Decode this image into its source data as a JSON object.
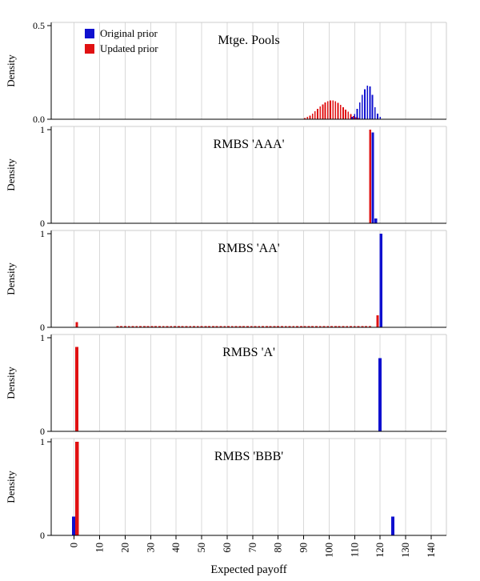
{
  "figure": {
    "xlabel": "Expected payoff",
    "ylabel": "Density",
    "x_ticks": [
      0,
      10,
      20,
      30,
      40,
      50,
      60,
      70,
      80,
      90,
      100,
      110,
      120,
      130,
      140
    ],
    "colors": {
      "grid": "#d9d9d9",
      "axis": "#000000",
      "frame": "#cccccc",
      "blue": "#0f10cf",
      "red": "#e01112"
    },
    "legend": {
      "items": [
        {
          "label": "Original prior",
          "color_key": "blue"
        },
        {
          "label": "Updated prior",
          "color_key": "red"
        }
      ]
    }
  },
  "chart_data": [
    {
      "type": "bar",
      "title": "Mtge. Pools",
      "ylim": [
        0,
        0.5
      ],
      "ytick_labels": [
        "0.0",
        "0.5"
      ],
      "series": [
        {
          "name": "Updated prior",
          "color_key": "red",
          "bar_width": 0.55,
          "bars": [
            {
              "x0": 90.5,
              "step": 1,
              "heights": [
                0.006,
                0.012,
                0.02,
                0.03,
                0.042,
                0.055,
                0.068,
                0.08,
                0.09,
                0.097,
                0.1,
                0.1,
                0.096,
                0.088,
                0.078,
                0.065,
                0.052,
                0.04,
                0.028,
                0.018,
                0.011,
                0.006
              ]
            }
          ]
        },
        {
          "name": "Original prior",
          "color_key": "blue",
          "bar_width": 0.55,
          "bars": [
            {
              "x0": 109,
              "step": 1,
              "heights": [
                0.012,
                0.028,
                0.055,
                0.09,
                0.13,
                0.16,
                0.18,
                0.175,
                0.13,
                0.065,
                0.03,
                0.012
              ]
            }
          ]
        }
      ]
    },
    {
      "type": "bar",
      "title": "RMBS 'AAA'",
      "ylim": [
        0,
        1
      ],
      "ytick_labels": [
        "0",
        "1"
      ],
      "series": [
        {
          "name": "Updated prior",
          "color_key": "red",
          "bar_width": 0.9,
          "bars": [
            {
              "x": 116.1,
              "h": 1.0
            }
          ]
        },
        {
          "name": "Original prior",
          "color_key": "blue",
          "bar_width": 1.0,
          "bars": [
            {
              "x": 117.1,
              "h": 0.97
            },
            {
              "x": 118.3,
              "h": 0.05
            }
          ]
        }
      ]
    },
    {
      "type": "bar",
      "title": "RMBS 'AA'",
      "ylim": [
        0,
        1
      ],
      "ytick_labels": [
        "0",
        "1"
      ],
      "series": [
        {
          "name": "Original prior",
          "color_key": "blue",
          "bar_width": 1.1,
          "bars": [
            {
              "x": 120.4,
              "h": 1.0
            }
          ]
        },
        {
          "name": "Updated prior",
          "color_key": "red",
          "bar_width": 0.9,
          "bars": [
            {
              "x": 1,
              "h": 0.055
            },
            {
              "from": 17,
              "to": 117,
              "step": 1.5,
              "h": 0.012
            },
            {
              "x": 119,
              "h": 0.13
            }
          ]
        }
      ]
    },
    {
      "type": "bar",
      "title": "RMBS 'A'",
      "ylim": [
        0,
        1
      ],
      "ytick_labels": [
        "0",
        "1"
      ],
      "series": [
        {
          "name": "Updated prior",
          "color_key": "red",
          "bar_width": 1.3,
          "bars": [
            {
              "x": 1,
              "h": 0.9
            }
          ]
        },
        {
          "name": "Original prior",
          "color_key": "blue",
          "bar_width": 1.3,
          "bars": [
            {
              "x": 120,
              "h": 0.78
            }
          ]
        }
      ]
    },
    {
      "type": "bar",
      "title": "RMBS 'BBB'",
      "ylim": [
        0,
        1
      ],
      "ytick_labels": [
        "0",
        "1"
      ],
      "series": [
        {
          "name": "Original prior",
          "color_key": "blue",
          "bar_width": 1.2,
          "bars": [
            {
              "x": -0.2,
              "h": 0.2
            },
            {
              "x": 125,
              "h": 0.2
            }
          ]
        },
        {
          "name": "Updated prior",
          "color_key": "red",
          "bar_width": 1.3,
          "bars": [
            {
              "x": 1.1,
              "h": 1.0
            }
          ]
        }
      ]
    }
  ]
}
